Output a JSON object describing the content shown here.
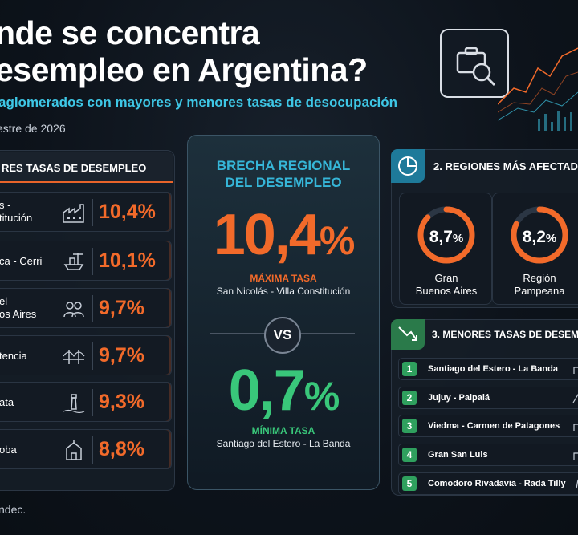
{
  "header": {
    "title_line1": "nde se concentra",
    "title_line2": "esempleo en Argentina?",
    "subtitle": "aglomerados con mayores y menores tasas de desocupación",
    "period": "estre de 2026"
  },
  "left": {
    "header": "RES TASAS DE DESEMPLEO",
    "rows": [
      {
        "name_1": "s -",
        "name_2": "titución",
        "value": "10,4%",
        "icon": "factory-icon"
      },
      {
        "name_1": "ca - Cerri",
        "name_2": "",
        "value": "10,1%",
        "icon": "port-icon"
      },
      {
        "name_1": "el",
        "name_2": "os Aires",
        "value": "9,7%",
        "icon": "people-icon"
      },
      {
        "name_1": "tencia",
        "name_2": "",
        "value": "9,7%",
        "icon": "bridge-icon"
      },
      {
        "name_1": "ata",
        "name_2": "",
        "value": "9,3%",
        "icon": "lighthouse-icon"
      },
      {
        "name_1": "oba",
        "name_2": "",
        "value": "8,8%",
        "icon": "church-icon"
      }
    ]
  },
  "footer": {
    "source": "ndec."
  },
  "center": {
    "title_line1": "BRECHA REGIONAL",
    "title_line2": "DEL DESEMPLEO",
    "max_value": "10,4",
    "max_pct": "%",
    "max_label": "MÁXIMA TASA",
    "max_name": "San Nicolás - Villa Constitución",
    "vs": "VS",
    "min_value": "0,7",
    "min_pct": "%",
    "min_label": "MÍNIMA TASA",
    "min_name": "Santiago del Estero - La Banda"
  },
  "regions": {
    "header": "2. REGIONES MÁS AFECTADA",
    "items": [
      {
        "value": "8,7",
        "pct": "%",
        "fraction": 0.87,
        "name_1": "Gran",
        "name_2": "Buenos Aires"
      },
      {
        "value": "8,2",
        "pct": "%",
        "fraction": 0.82,
        "name_1": "Región",
        "name_2": "Pampeana"
      }
    ]
  },
  "lowest": {
    "header": "3. MENORES TASAS DE DESEM",
    "rows": [
      {
        "num": "1",
        "name": "Santiago del Estero - La Banda"
      },
      {
        "num": "2",
        "name": "Jujuy - Palpalá"
      },
      {
        "num": "3",
        "name": "Viedma - Carmen de Patagones"
      },
      {
        "num": "4",
        "name": "Gran San Luis"
      },
      {
        "num": "5",
        "name": "Comodoro Rivadavia - Rada Tilly"
      }
    ]
  },
  "colors": {
    "orange": "#f26a2a",
    "green": "#39c77a",
    "cyan": "#36b6d8"
  }
}
